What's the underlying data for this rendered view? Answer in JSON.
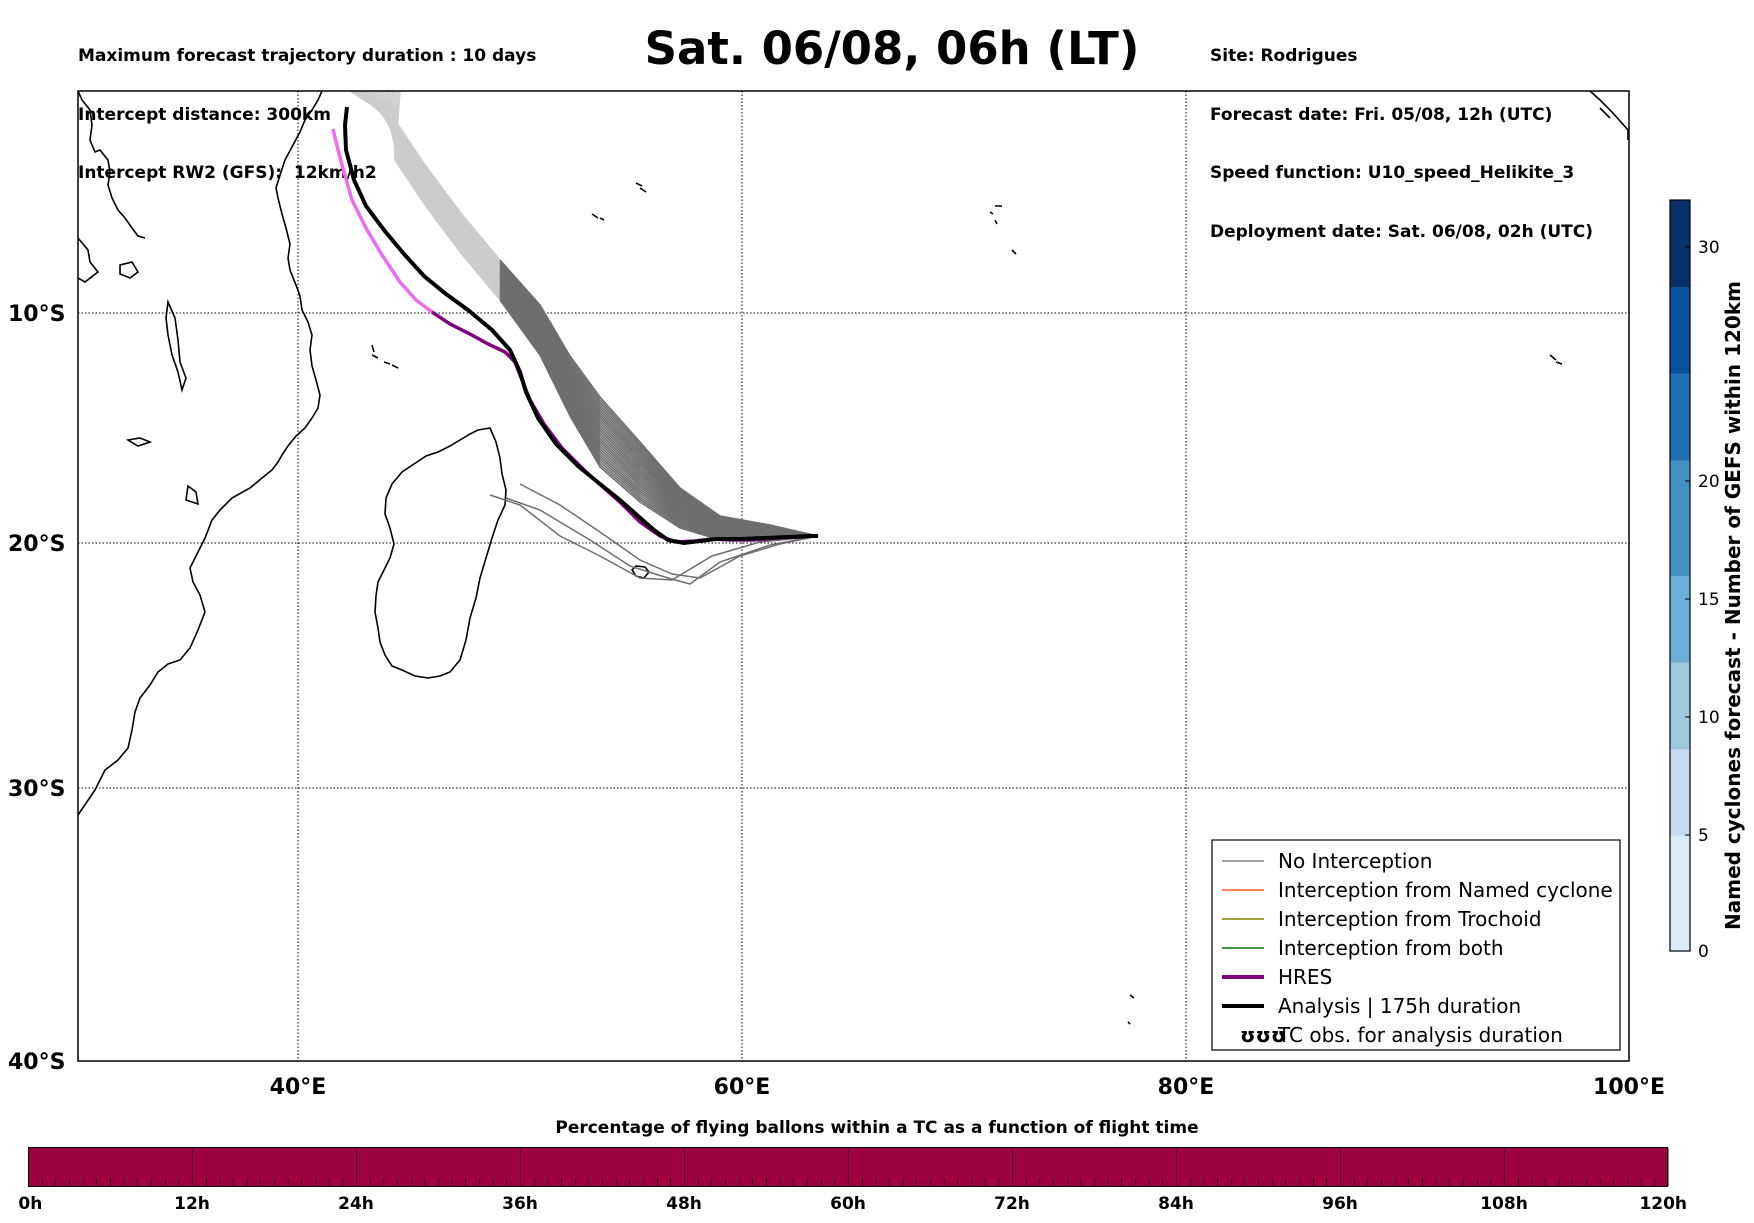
{
  "header": {
    "left": [
      "Maximum forecast trajectory duration : 10 days",
      "Intercept distance: 300km",
      "Intercept RW2 (GFS):  12km/h2"
    ],
    "title": "Sat. 06/08, 06h (LT)",
    "right": [
      "Site: Rodrigues",
      "Forecast date: Fri. 05/08, 12h (UTC)",
      "Speed function: U10_speed_Helikite_3",
      "Deployment date: Sat. 06/08, 02h (UTC)"
    ]
  },
  "map": {
    "lon_range": [
      30,
      100
    ],
    "lat_range": [
      -40,
      1
    ],
    "lat_labels": [
      "10°S",
      "20°S",
      "30°S",
      "40°S"
    ],
    "lon_labels": [
      "40°E",
      "60°E",
      "80°E",
      "100°E"
    ],
    "colors": {
      "ensemble": "#6e6e6e",
      "ensemble_light": "#c8c8c8",
      "hres": "#800080",
      "hres_early": "#ee6aee",
      "analysis": "#000000"
    }
  },
  "legend": [
    {
      "label": "No Interception",
      "color": "#808080",
      "style": "thin"
    },
    {
      "label": "Interception from Named cyclone",
      "color": "#ff5a1f",
      "style": "thin"
    },
    {
      "label": "Interception from Trochoid",
      "color": "#808000",
      "style": "thin"
    },
    {
      "label": "Interception from both",
      "color": "#008000",
      "style": "thin"
    },
    {
      "label": "HRES",
      "color": "#800080",
      "style": "thick"
    },
    {
      "label": "Analysis | 175h duration",
      "color": "#000000",
      "style": "thick"
    },
    {
      "label": "TC obs. for analysis duration",
      "color": "#000000",
      "style": "symbol",
      "symbol": "ʊʊʊ"
    }
  ],
  "colorbar": {
    "title": "Named cyclones forecast - Number of GEFS within 120km",
    "ticks": [
      "0",
      "5",
      "10",
      "15",
      "20",
      "30"
    ],
    "colors": [
      "#deebf7",
      "#c6dbef",
      "#9ecae1",
      "#6baed6",
      "#4292c6",
      "#2171b5",
      "#08519c",
      "#08306b"
    ]
  },
  "percentage_bar": {
    "title": "Percentage of flying ballons within a TC as a function of flight time",
    "ticks": [
      "0h",
      "12h",
      "24h",
      "36h",
      "48h",
      "60h",
      "72h",
      "84h",
      "96h",
      "108h",
      "120h"
    ],
    "fill_color": "#9e0142",
    "value": 0
  }
}
